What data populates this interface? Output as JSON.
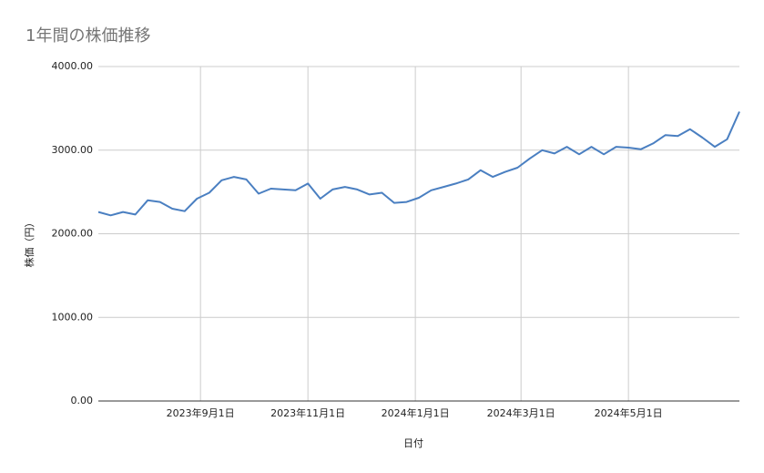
{
  "chart_data": {
    "type": "line",
    "title": "1年間の株価推移",
    "x_label": "日付",
    "y_label": "株価（円）",
    "x": [
      "2023-07-05",
      "2023-07-12",
      "2023-07-19",
      "2023-07-26",
      "2023-08-02",
      "2023-08-09",
      "2023-08-16",
      "2023-08-23",
      "2023-08-30",
      "2023-09-06",
      "2023-09-13",
      "2023-09-20",
      "2023-09-27",
      "2023-10-04",
      "2023-10-11",
      "2023-10-18",
      "2023-10-25",
      "2023-11-01",
      "2023-11-08",
      "2023-11-15",
      "2023-11-22",
      "2023-11-29",
      "2023-12-06",
      "2023-12-13",
      "2023-12-20",
      "2023-12-27",
      "2024-01-03",
      "2024-01-10",
      "2024-01-17",
      "2024-01-24",
      "2024-01-31",
      "2024-02-07",
      "2024-02-14",
      "2024-02-21",
      "2024-02-28",
      "2024-03-06",
      "2024-03-13",
      "2024-03-20",
      "2024-03-27",
      "2024-04-03",
      "2024-04-10",
      "2024-04-17",
      "2024-04-24",
      "2024-05-01",
      "2024-05-08",
      "2024-05-15",
      "2024-05-22",
      "2024-05-29",
      "2024-06-05",
      "2024-06-12",
      "2024-06-19",
      "2024-06-26",
      "2024-07-03"
    ],
    "series": [
      {
        "name": "株価",
        "color": "#4a7fc1",
        "values": [
          2260,
          2220,
          2260,
          2230,
          2400,
          2380,
          2300,
          2270,
          2420,
          2490,
          2640,
          2680,
          2650,
          2480,
          2540,
          2530,
          2520,
          2600,
          2420,
          2530,
          2560,
          2530,
          2470,
          2490,
          2370,
          2380,
          2430,
          2520,
          2560,
          2600,
          2650,
          2760,
          2680,
          2740,
          2790,
          2900,
          3000,
          2960,
          3040,
          2950,
          3040,
          2950,
          3040,
          3030,
          3010,
          3080,
          3180,
          3170,
          3250,
          3150,
          3040,
          3130,
          3460
        ]
      }
    ],
    "xlim": [
      "2023-07-05",
      "2024-07-03"
    ],
    "xticks": [
      {
        "value": "2023-09-01",
        "label": "2023年9月1日"
      },
      {
        "value": "2023-11-01",
        "label": "2023年11月1日"
      },
      {
        "value": "2024-01-01",
        "label": "2024年1月1日"
      },
      {
        "value": "2024-03-01",
        "label": "2024年3月1日"
      },
      {
        "value": "2024-05-01",
        "label": "2024年5月1日"
      }
    ],
    "ylim": [
      0,
      4000
    ],
    "yticks": [
      {
        "value": 0,
        "label": "0.00"
      },
      {
        "value": 1000,
        "label": "1000.00"
      },
      {
        "value": 2000,
        "label": "2000.00"
      },
      {
        "value": 3000,
        "label": "3000.00"
      },
      {
        "value": 4000,
        "label": "4000.00"
      }
    ],
    "grid": true
  }
}
